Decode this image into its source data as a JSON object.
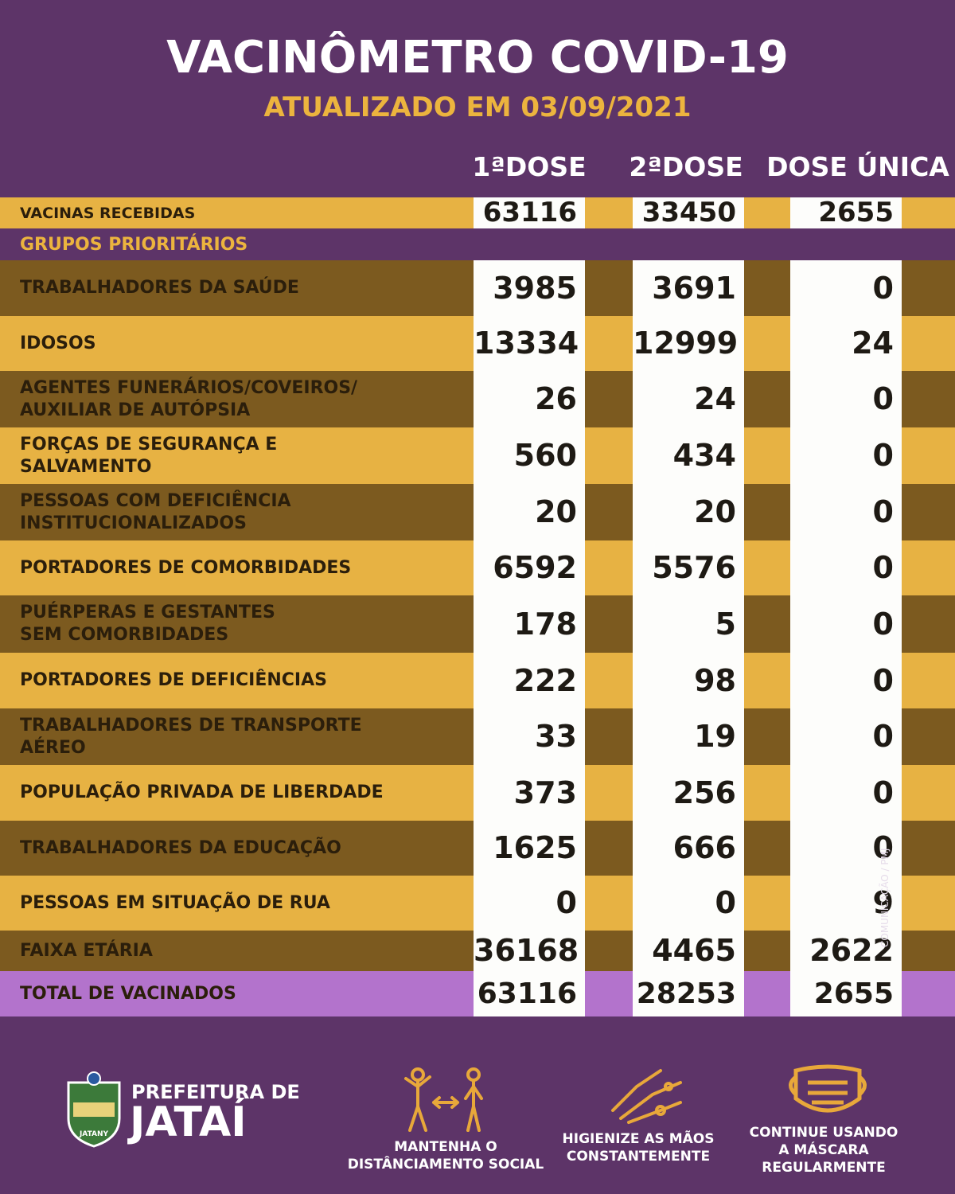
{
  "header": {
    "title": "VACINÔMETRO COVID-19",
    "subtitle": "ATUALIZADO EM 03/09/2021"
  },
  "table": {
    "columns": [
      "1ªDOSE",
      "2ªDOSE",
      "DOSE ÚNICA"
    ],
    "received": {
      "label": "VACINAS RECEBIDAS",
      "values": [
        63116,
        33450,
        2655
      ]
    },
    "section": "GRUPOS PRIORITÁRIOS",
    "rows": [
      {
        "label": [
          "TRABALHADORES DA SAÚDE"
        ],
        "values": [
          3985,
          3691,
          0
        ]
      },
      {
        "label": [
          "IDOSOS"
        ],
        "values": [
          13334,
          12999,
          24
        ]
      },
      {
        "label": [
          "AGENTES FUNERÁRIOS/COVEIROS/",
          "AUXILIAR DE AUTÓPSIA"
        ],
        "values": [
          26,
          24,
          0
        ]
      },
      {
        "label": [
          "FORÇAS DE SEGURANÇA E",
          "SALVAMENTO"
        ],
        "values": [
          560,
          434,
          0
        ]
      },
      {
        "label": [
          "PESSOAS COM DEFICIÊNCIA",
          "INSTITUCIONALIZADOS"
        ],
        "values": [
          20,
          20,
          0
        ]
      },
      {
        "label": [
          "PORTADORES DE COMORBIDADES"
        ],
        "values": [
          6592,
          5576,
          0
        ]
      },
      {
        "label": [
          "PUÉRPERAS E GESTANTES",
          "SEM COMORBIDADES"
        ],
        "values": [
          178,
          5,
          0
        ]
      },
      {
        "label": [
          "PORTADORES DE DEFICIÊNCIAS"
        ],
        "values": [
          222,
          98,
          0
        ]
      },
      {
        "label": [
          "TRABALHADORES DE TRANSPORTE",
          "AÉREO"
        ],
        "values": [
          33,
          19,
          0
        ]
      },
      {
        "label": [
          "POPULAÇÃO PRIVADA DE LIBERDADE"
        ],
        "values": [
          373,
          256,
          0
        ]
      },
      {
        "label": [
          "TRABALHADORES DA EDUCAÇÃO"
        ],
        "values": [
          1625,
          666,
          0
        ]
      },
      {
        "label": [
          "PESSOAS EM SITUAÇÃO DE RUA"
        ],
        "values": [
          0,
          0,
          9
        ]
      },
      {
        "label": [
          "FAIXA ETÁRIA"
        ],
        "values": [
          36168,
          4465,
          2622
        ]
      }
    ],
    "total": {
      "label": "TOTAL DE VACINADOS",
      "values": [
        63116,
        28253,
        2655
      ]
    }
  },
  "footer": {
    "brand": [
      "PREFEITURA DE",
      "JATAÍ"
    ],
    "logo_text": "JATANY",
    "tips": [
      [
        "MANTENHA O",
        "DISTÂNCIAMENTO SOCIAL"
      ],
      [
        "HIGIENIZE AS MÃOS",
        "CONSTANTEMENTE"
      ],
      [
        "CONTINUE USANDO",
        "A MÁSCARA",
        "REGULARMENTE"
      ]
    ],
    "credit": "COMUNICAÇÃO / PMJ"
  }
}
